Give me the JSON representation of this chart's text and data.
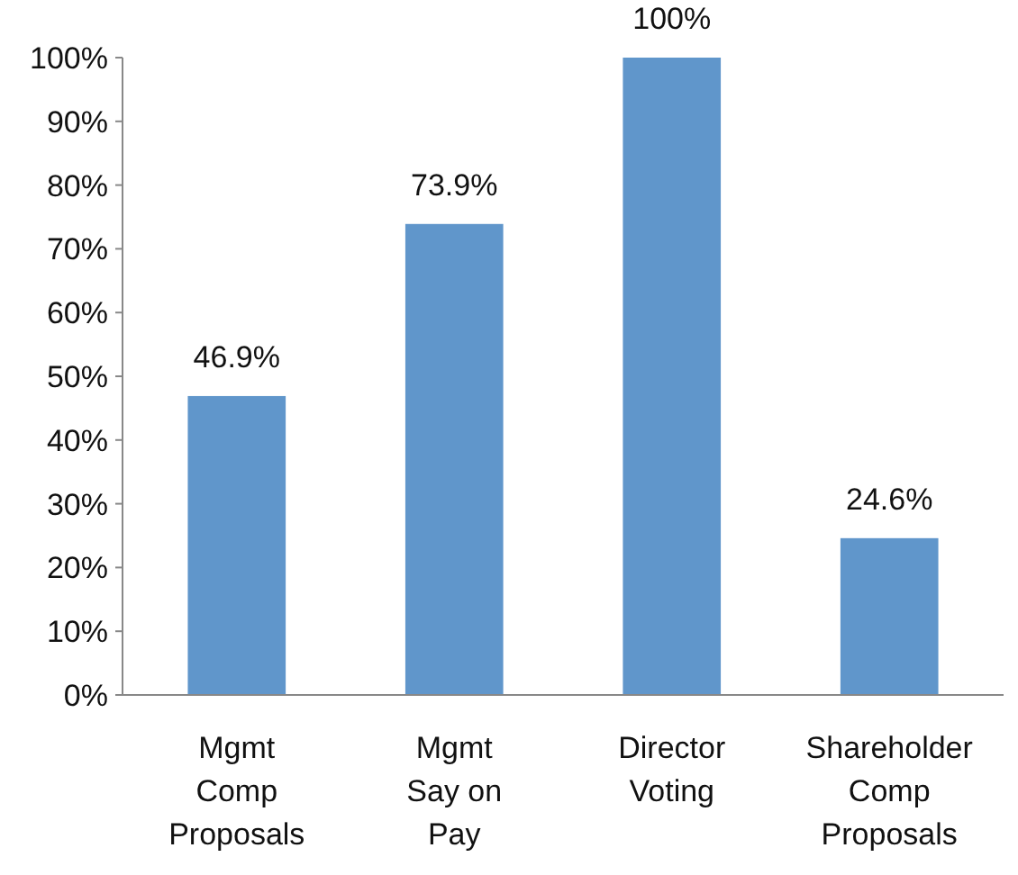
{
  "chart_data": {
    "type": "bar",
    "categories": [
      "Mgmt\nComp\nProposals",
      "Mgmt\nSay on\nPay",
      "Director\nVoting",
      "Shareholder\nComp\nProposals"
    ],
    "values": [
      46.9,
      73.9,
      100,
      24.6
    ],
    "value_labels": [
      "46.9%",
      "73.9%",
      "100%",
      "24.6%"
    ],
    "color": "#6096cb",
    "ylim": [
      0,
      100
    ],
    "yticks": [
      {
        "value": 0,
        "label": "0%"
      },
      {
        "value": 10,
        "label": "10%"
      },
      {
        "value": 20,
        "label": "20%"
      },
      {
        "value": 30,
        "label": "30%"
      },
      {
        "value": 40,
        "label": "40%"
      },
      {
        "value": 50,
        "label": "50%"
      },
      {
        "value": 60,
        "label": "60%"
      },
      {
        "value": 70,
        "label": "70%"
      },
      {
        "value": 80,
        "label": "80%"
      },
      {
        "value": 90,
        "label": "90%"
      },
      {
        "value": 100,
        "label": "100%"
      }
    ]
  }
}
